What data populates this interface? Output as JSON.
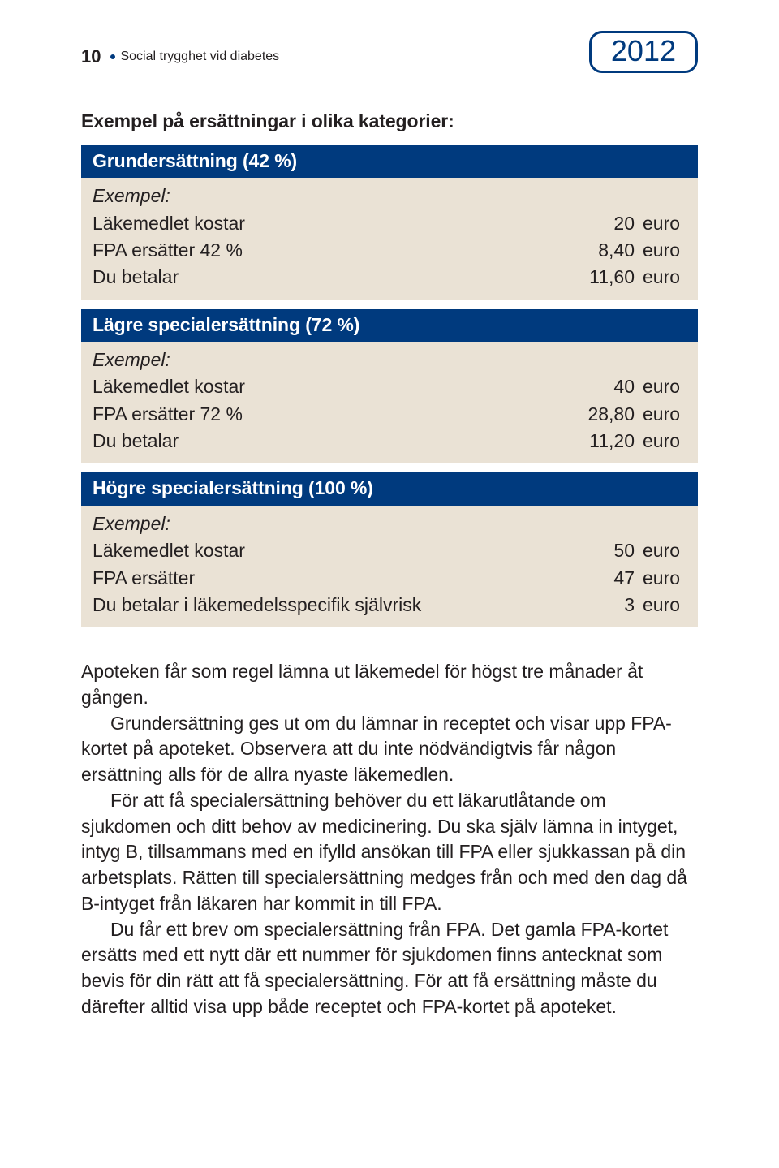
{
  "header": {
    "page_number": "10",
    "title": "Social trygghet vid diabetes",
    "year": "2012"
  },
  "intro": "Exempel på ersättningar i olika kategorier:",
  "tables": [
    {
      "header": "Grundersättning (42 %)",
      "example_label": "Exempel:",
      "rows": [
        {
          "label": "Läkemedlet kostar",
          "value": "20",
          "unit": "euro"
        },
        {
          "label": "FPA ersätter 42 %",
          "value": "8,40",
          "unit": "euro"
        },
        {
          "label": "Du betalar",
          "value": "11,60",
          "unit": "euro"
        }
      ]
    },
    {
      "header": "Lägre specialersättning (72 %)",
      "example_label": "Exempel:",
      "rows": [
        {
          "label": "Läkemedlet kostar",
          "value": "40",
          "unit": "euro"
        },
        {
          "label": "FPA ersätter 72 %",
          "value": "28,80",
          "unit": "euro"
        },
        {
          "label": "Du betalar",
          "value": "11,20",
          "unit": "euro"
        }
      ]
    },
    {
      "header": "Högre specialersättning (100 %)",
      "example_label": "Exempel:",
      "rows": [
        {
          "label": "Läkemedlet kostar",
          "value": "50",
          "unit": "euro"
        },
        {
          "label": "FPA ersätter",
          "value": "47",
          "unit": "euro"
        },
        {
          "label": "Du betalar i läkemedelsspecifik självrisk",
          "value": "3",
          "unit": "euro"
        }
      ]
    }
  ],
  "body": {
    "p1": "Apoteken får som regel lämna ut läkemedel för högst tre månader åt gången.",
    "p2": "Grundersättning ges ut om du lämnar in receptet och visar upp FPA-kortet på apoteket. Observera att du inte nödvändigtvis får någon ersättning alls för de allra nyaste läkemedlen.",
    "p3": "För att få specialersättning behöver du ett läkarutlåtande om sjukdomen och ditt behov av medicinering. Du ska själv lämna in intyget, intyg B, tillsammans med en ifylld ansökan till FPA eller sjukkassan på din arbetsplats. Rätten till specialersättning medges från och med den dag då B-intyget från läkaren har kommit in till FPA.",
    "p4": "Du får ett brev om specialersättning från FPA. Det gamla FPA-kortet ersätts med ett nytt där ett nummer för sjukdomen finns antecknat som bevis för din rätt att få specialersättning. För att få ersättning måste du därefter alltid visa upp både receptet och FPA-kortet på apoteket."
  },
  "colors": {
    "brand_blue": "#003a7e",
    "table_bg": "#eae2d5",
    "text": "#231f20",
    "page_bg": "#ffffff"
  }
}
